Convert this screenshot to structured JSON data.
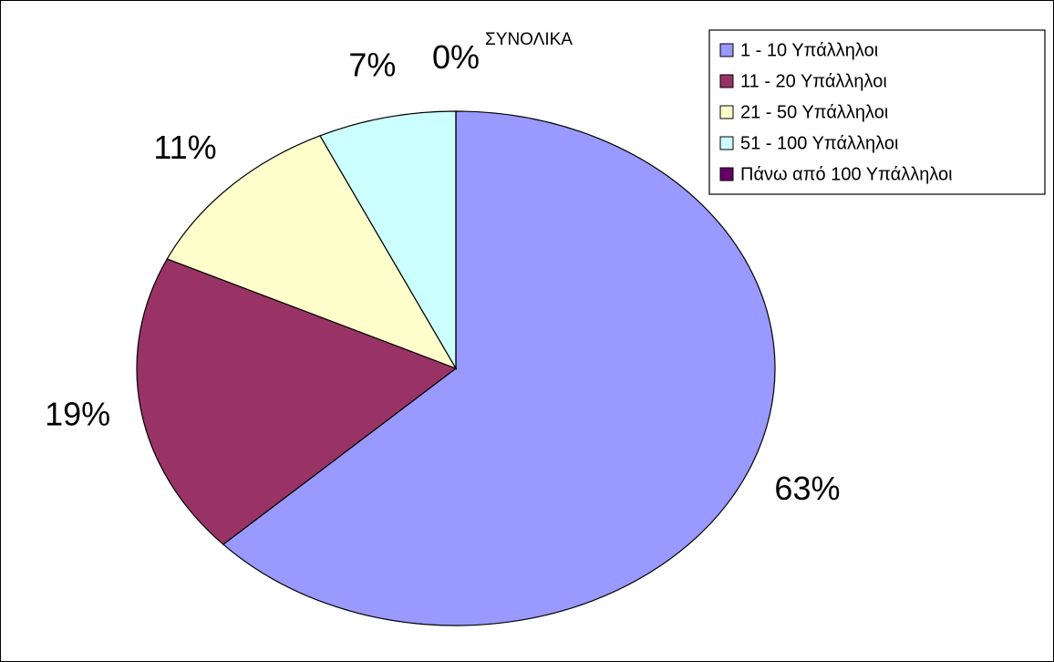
{
  "chart_data": {
    "type": "pie",
    "title": "ΣΥΝΟΛΙΚΑ",
    "categories": [
      "1 - 10 Υπάλληλοι",
      "11 - 20 Υπάλληλοι",
      "21 - 50 Υπάλληλοι",
      "51 - 100 Υπάλληλοι",
      "Πάνω από 100 Υπάλληλοι"
    ],
    "values": [
      63,
      19,
      11,
      7,
      0
    ],
    "value_labels": [
      "63%",
      "19%",
      "11%",
      "7%",
      "0%"
    ],
    "colors": [
      "#9999ff",
      "#993366",
      "#ffffcc",
      "#ccffff",
      "#660066"
    ],
    "legend": "upper right"
  }
}
